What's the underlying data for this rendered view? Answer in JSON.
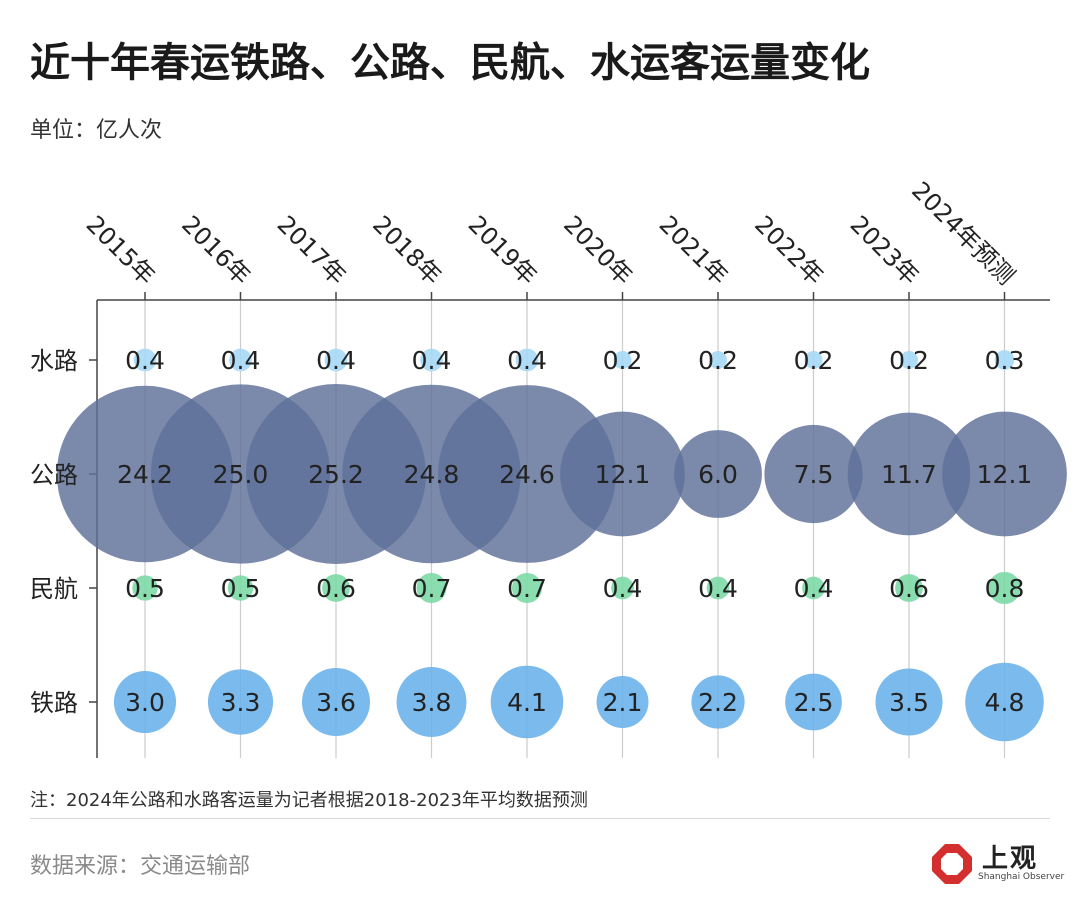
{
  "title": "近十年春运铁路、公路、民航、水运客运量变化",
  "unit": "单位：亿人次",
  "note": "注：2024年公路和水路客运量为记者根据2018-2023年平均数据预测",
  "source": "数据来源：交通运输部",
  "logo": {
    "text": "上观",
    "subtext": "Shanghai Observer"
  },
  "colors": {
    "水路": "#a6d8f5",
    "公路": "#5e7099",
    "民航": "#7dd9a6",
    "铁路": "#6db3ea",
    "axis": "#444444",
    "grid": "#cccccc"
  },
  "chart_data": {
    "type": "bubble",
    "categories": [
      "2015年",
      "2016年",
      "2017年",
      "2018年",
      "2019年",
      "2020年",
      "2021年",
      "2022年",
      "2023年",
      "2024年预测"
    ],
    "rows": [
      "水路",
      "公路",
      "民航",
      "铁路"
    ],
    "series": [
      {
        "name": "水路",
        "values": [
          0.4,
          0.4,
          0.4,
          0.4,
          0.4,
          0.2,
          0.2,
          0.2,
          0.2,
          0.3
        ]
      },
      {
        "name": "公路",
        "values": [
          24.2,
          25.0,
          25.2,
          24.8,
          24.6,
          12.1,
          6.0,
          7.5,
          11.7,
          12.1
        ]
      },
      {
        "name": "民航",
        "values": [
          0.5,
          0.5,
          0.6,
          0.7,
          0.7,
          0.4,
          0.4,
          0.4,
          0.6,
          0.8
        ]
      },
      {
        "name": "铁路",
        "values": [
          3.0,
          3.3,
          3.6,
          3.8,
          4.1,
          2.1,
          2.2,
          2.5,
          3.5,
          4.8
        ]
      }
    ],
    "labels": [
      [
        "0.4",
        "0.4",
        "0.4",
        "0.4",
        "0.4",
        "0.2",
        "0.2",
        "0.2",
        "0.2",
        "0.3"
      ],
      [
        "24.2",
        "25.0",
        "25.2",
        "24.8",
        "24.6",
        "12.1",
        "6.0",
        "7.5",
        "11.7",
        "12.1"
      ],
      [
        "0.5",
        "0.5",
        "0.6",
        "0.7",
        "0.7",
        "0.4",
        "0.4",
        "0.4",
        "0.6",
        "0.8"
      ],
      [
        "3.0",
        "3.3",
        "3.6",
        "3.8",
        "4.1",
        "2.1",
        "2.2",
        "2.5",
        "3.5",
        "4.8"
      ]
    ],
    "grid": true
  }
}
